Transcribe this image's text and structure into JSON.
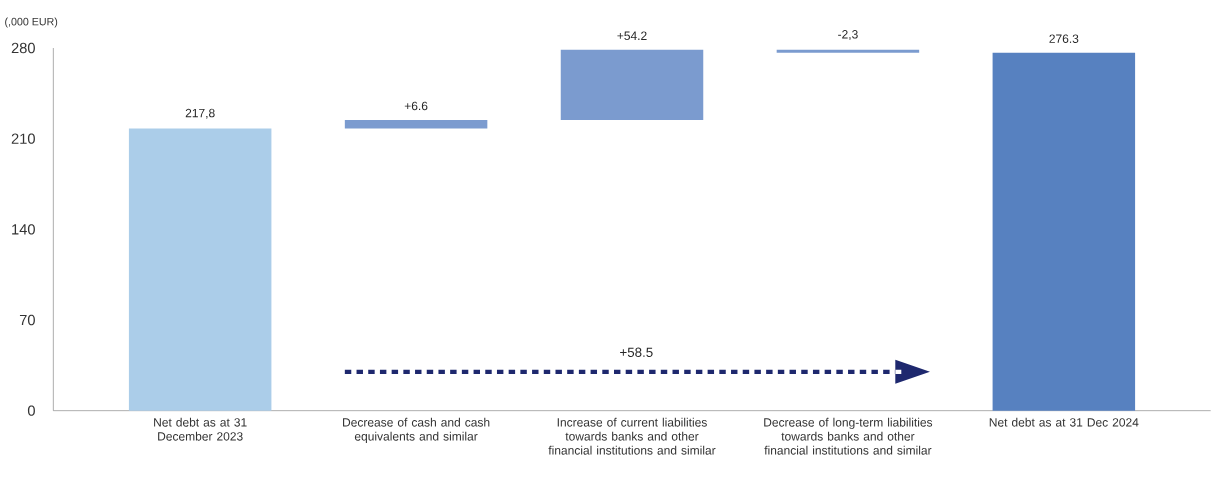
{
  "chart_data": {
    "type": "bar",
    "ylabel": "(,000 EUR)",
    "categories": [
      "Net debt as at 31 December 2023",
      "Decrease of cash and cash equivalents and similar",
      "Increase of current liabilities towards banks and other financial institutions and similar",
      "Decrease of long-term liabilities towards banks and other financial institutions and similar",
      "Net debt as at 31 Dec 2024"
    ],
    "values": [
      217.8,
      6.6,
      54.2,
      -2.3,
      276.3
    ],
    "base": [
      0,
      217.8,
      224.4,
      278.6,
      0
    ],
    "colors": [
      "#abcde9",
      "#7b9bcf",
      "#7b9bcf",
      "#7b9bcf",
      "#5781c0"
    ],
    "value_labels": [
      "217,8",
      "+6.6",
      "+54.2",
      "-2,3",
      "276.3"
    ],
    "ylim": [
      0,
      280
    ],
    "yticks": [
      0,
      70,
      140,
      210,
      280
    ],
    "annotations": [
      "+58.5"
    ]
  }
}
